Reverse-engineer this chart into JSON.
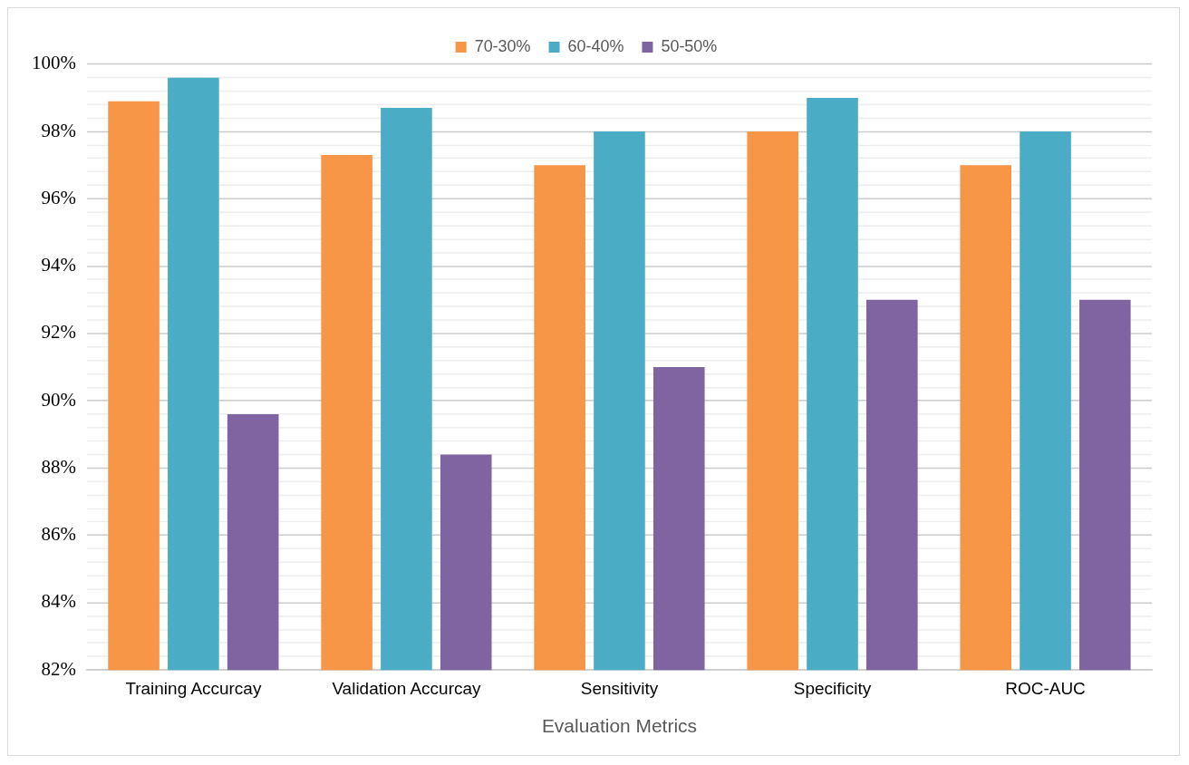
{
  "chart_data": {
    "type": "bar",
    "xlabel": "Evaluation Metrics",
    "categories": [
      "Training Accurcay",
      "Validation Accurcay",
      "Sensitivity",
      "Specificity",
      "ROC-AUC"
    ],
    "series": [
      {
        "name": "70-30%",
        "color": "#f79646",
        "values": [
          98.9,
          97.3,
          97,
          98,
          97
        ]
      },
      {
        "name": "60-40%",
        "color": "#4bacc6",
        "values": [
          99.6,
          98.7,
          98,
          99,
          98
        ]
      },
      {
        "name": "50-50%",
        "color": "#8064a2",
        "values": [
          89.6,
          88.4,
          91,
          93,
          93
        ]
      }
    ],
    "ylim": [
      82,
      100
    ],
    "yticks": [
      {
        "value": 82,
        "label": "82%"
      },
      {
        "value": 82.4,
        "label": null
      },
      {
        "value": 82.8,
        "label": null
      },
      {
        "value": 83.2,
        "label": null
      },
      {
        "value": 83.6,
        "label": null
      },
      {
        "value": 84,
        "label": "84%"
      },
      {
        "value": 84.4,
        "label": null
      },
      {
        "value": 84.8,
        "label": null
      },
      {
        "value": 85.2,
        "label": null
      },
      {
        "value": 85.6,
        "label": null
      },
      {
        "value": 86,
        "label": "86%"
      },
      {
        "value": 86.4,
        "label": null
      },
      {
        "value": 86.8,
        "label": null
      },
      {
        "value": 87.2,
        "label": null
      },
      {
        "value": 87.6,
        "label": null
      },
      {
        "value": 88,
        "label": "88%"
      },
      {
        "value": 88.4,
        "label": null
      },
      {
        "value": 88.8,
        "label": null
      },
      {
        "value": 89.2,
        "label": null
      },
      {
        "value": 89.6,
        "label": null
      },
      {
        "value": 90,
        "label": "90%"
      },
      {
        "value": 90.4,
        "label": null
      },
      {
        "value": 90.8,
        "label": null
      },
      {
        "value": 91.2,
        "label": null
      },
      {
        "value": 91.6,
        "label": null
      },
      {
        "value": 92,
        "label": "92%"
      },
      {
        "value": 92.4,
        "label": null
      },
      {
        "value": 92.8,
        "label": null
      },
      {
        "value": 93.2,
        "label": null
      },
      {
        "value": 93.6,
        "label": null
      },
      {
        "value": 94,
        "label": "94%"
      },
      {
        "value": 94.4,
        "label": null
      },
      {
        "value": 94.8,
        "label": null
      },
      {
        "value": 95.2,
        "label": null
      },
      {
        "value": 95.6,
        "label": null
      },
      {
        "value": 96,
        "label": "96%"
      },
      {
        "value": 96.4,
        "label": null
      },
      {
        "value": 96.8,
        "label": null
      },
      {
        "value": 97.2,
        "label": null
      },
      {
        "value": 97.6,
        "label": null
      },
      {
        "value": 98,
        "label": "98%"
      },
      {
        "value": 98.4,
        "label": null
      },
      {
        "value": 98.8,
        "label": null
      },
      {
        "value": 99.2,
        "label": null
      },
      {
        "value": 99.6,
        "label": null
      },
      {
        "value": 100,
        "label": "100%"
      }
    ],
    "grid": "y",
    "legend": "top"
  }
}
